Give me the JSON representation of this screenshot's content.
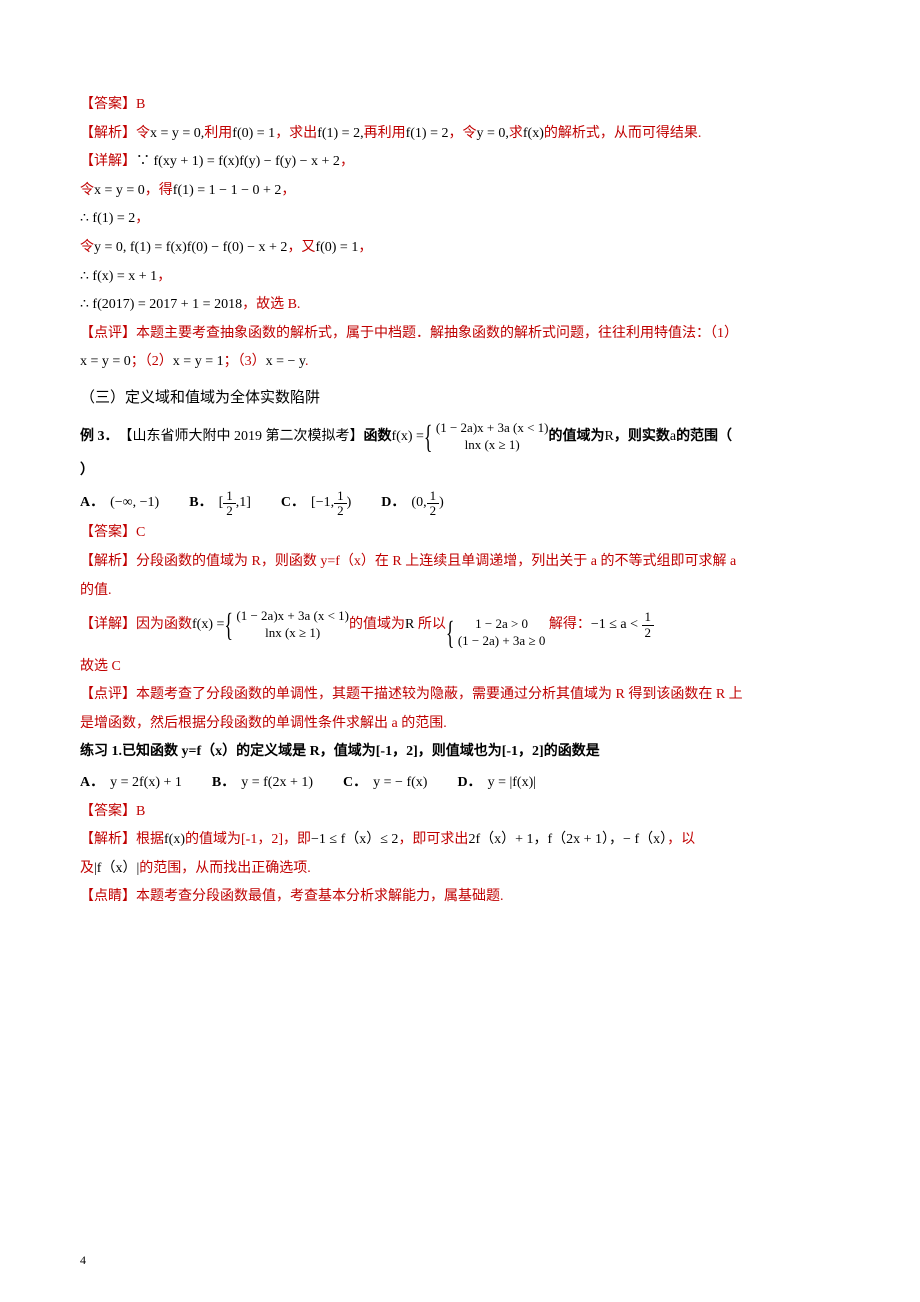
{
  "colors": {
    "red": "#c00000",
    "black": "#000000",
    "background": "#ffffff"
  },
  "typography": {
    "body_fontsize": 14,
    "heading_fontsize": 15,
    "line_height": 1.9
  },
  "section1": {
    "answer_label": "【答案】",
    "answer_value": "B",
    "analysis_label": "【解析】",
    "analysis_t1": "令",
    "analysis_f1": "x = y = 0,",
    "analysis_t2": "利用",
    "analysis_f2": "f(0) = 1",
    "analysis_t3": "，求出",
    "analysis_f3": "f(1) = 2,",
    "analysis_t4": "再利用",
    "analysis_f4": "f(1) = 2",
    "analysis_t5": "，令",
    "analysis_f5": "y = 0,",
    "analysis_t6": "求",
    "analysis_f6": "f(x)",
    "analysis_t7": "的解析式，从而可得结果.",
    "detail_label": "【详解】",
    "detail_l1_a": "∵ f(xy + 1) = f(x)f(y) − f(y) − x + 2",
    "detail_l1_b": "，",
    "detail_l2_a": "令",
    "detail_l2_b": "x = y = 0",
    "detail_l2_c": "，得",
    "detail_l2_d": "f(1) = 1 − 1 − 0 + 2",
    "detail_l2_e": "，",
    "detail_l3_a": "∴ f(1) = 2",
    "detail_l3_b": "，",
    "detail_l4_a": "令",
    "detail_l4_b": "y = 0, f(1) = f(x)f(0) − f(0) − x + 2",
    "detail_l4_c": "，又",
    "detail_l4_d": "f(0) = 1",
    "detail_l4_e": "，",
    "detail_l5_a": "∴ f(x) = x + 1",
    "detail_l5_b": "，",
    "detail_l6_a": "∴ f(2017) = 2017 + 1 = 2018",
    "detail_l6_b": "，故选 B.",
    "comment_label": "【点评】",
    "comment_t1": "本题主要考查抽象函数的解析式，属于中档题．解抽象函数的解析式问题，往往利用特值法：（1）",
    "comment_l2_a": "x = y = 0",
    "comment_l2_b": "；（2）",
    "comment_l2_c": "x = y = 1",
    "comment_l2_d": "；（3）",
    "comment_l2_e": "x = − y",
    "comment_l2_f": "."
  },
  "section2": {
    "heading": "（三）定义域和值域为全体实数陷阱",
    "stem_label": "例 3．",
    "stem_src": "【山东省师大附中 2019 第二次模拟考】",
    "stem_t1": "函数",
    "stem_fx": "f(x) = ",
    "stem_pw1": "(1 − 2a)x + 3a (x < 1)",
    "stem_pw2": "lnx (x ≥ 1)",
    "stem_t2": "的值域为",
    "stem_R": "R",
    "stem_t3": "，则实数",
    "stem_a": "a",
    "stem_t4": "的范围（",
    "stem_t5": "）",
    "choices": {
      "A_lbl": "A．",
      "A_val": "(−∞, −1)",
      "B_lbl": "B．",
      "B_val_l": "[",
      "B_num1": "1",
      "B_den1": "2",
      "B_mid": ",1",
      "B_val_r": "]",
      "C_lbl": "C．",
      "C_val_l": "[−1,",
      "C_num": "1",
      "C_den": "2",
      "C_val_r": ")",
      "D_lbl": "D．",
      "D_val_l": "(0,",
      "D_num": "1",
      "D_den": "2",
      "D_val_r": ")"
    },
    "answer_label": "【答案】",
    "answer_value": "C",
    "analysis_label": "【解析】",
    "analysis_t1": "分段函数的值域为 R，则函数 y=f（x）在 R 上连续且单调递增，列出关于 a 的不等式组即可求解 a",
    "analysis_t2": "的值.",
    "detail_label": "【详解】",
    "detail_t1": "因为函数",
    "detail_fx": "f(x) = ",
    "detail_pw1": "(1 − 2a)x + 3a (x < 1)",
    "detail_pw2": "lnx (x ≥ 1)",
    "detail_t2": "的值域为",
    "detail_R": "R",
    "detail_t3": "所以",
    "detail_sys1": "1 − 2a > 0",
    "detail_sys2": "(1 − 2a) + 3a ≥ 0",
    "detail_t4": "解得：",
    "detail_res_l": "−1 ≤ a <",
    "detail_res_num": "1",
    "detail_res_den": "2",
    "detail_t5": "故选 C",
    "comment_label": "【点评】",
    "comment_t1": "本题考查了分段函数的单调性，其题干描述较为隐蔽，需要通过分析其值域为 R 得到该函数在 R 上",
    "comment_t2": "是增函数，然后根据分段函数的单调性条件求解出 a 的范围."
  },
  "section3": {
    "stem_a": "练习 1.",
    "stem_b": "已知函数 y=f（x）的定义域是 R，值域为[-1，2]，则值域也为[-1，2]的函数是",
    "choices": {
      "A_lbl": "A．",
      "A_val": "y = 2f(x) + 1",
      "B_lbl": "B．",
      "B_val": "y = f(2x + 1)",
      "C_lbl": "C．",
      "C_val": "y = − f(x)",
      "D_lbl": "D．",
      "D_val": "y = |f(x)|"
    },
    "answer_label": "【答案】",
    "answer_value": "B",
    "analysis_label": "【解析】",
    "analysis_t1": "根据",
    "analysis_f1": "f(x)",
    "analysis_t2": "的值域为[-1，2]，即",
    "analysis_f2": "−1 ≤ f（x）≤ 2",
    "analysis_t3": "，即可求出",
    "analysis_f3": "2f（x）+ 1，f（2x + 1），− f（x）",
    "analysis_t4": "，以",
    "analysis_l2_a": "及",
    "analysis_l2_b": "|f（x）|",
    "analysis_l2_c": "的范围，从而找出正确选项.",
    "comment_label": "【点睛】",
    "comment_t1": "本题考查分段函数最值，考查基本分析求解能力，属基础题."
  },
  "page_number": "4"
}
